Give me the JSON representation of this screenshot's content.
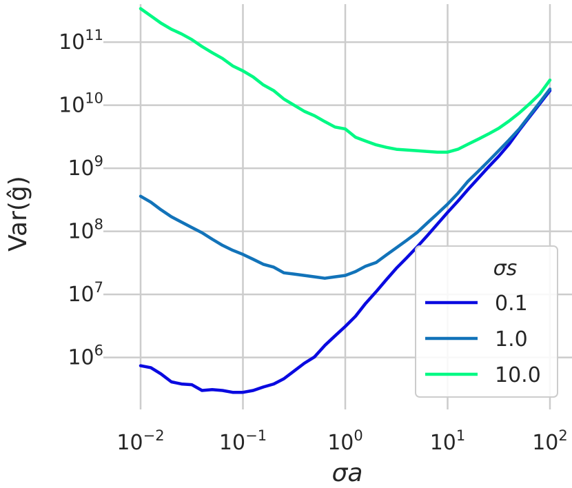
{
  "chart_data": {
    "type": "line",
    "x_scale": "log",
    "y_scale": "log",
    "xlim": [
      0.01,
      100
    ],
    "ylim": [
      150000,
      400000000000
    ],
    "xlabel": "σa",
    "ylabel": "Var(ĝ)",
    "grid": true,
    "x_ticks": [
      {
        "value": 0.01,
        "base": "10",
        "exp": "−2"
      },
      {
        "value": 0.1,
        "base": "10",
        "exp": "−1"
      },
      {
        "value": 1,
        "base": "10",
        "exp": "0"
      },
      {
        "value": 10,
        "base": "10",
        "exp": "1"
      },
      {
        "value": 100,
        "base": "10",
        "exp": "2"
      }
    ],
    "y_ticks": [
      {
        "value": 1000000,
        "base": "10",
        "exp": "6"
      },
      {
        "value": 10000000,
        "base": "10",
        "exp": "7"
      },
      {
        "value": 100000000,
        "base": "10",
        "exp": "8"
      },
      {
        "value": 1000000000,
        "base": "10",
        "exp": "9"
      },
      {
        "value": 10000000000,
        "base": "10",
        "exp": "10"
      },
      {
        "value": 100000000000,
        "base": "10",
        "exp": "11"
      }
    ],
    "legend": {
      "title": "σs",
      "placement": "lower-right"
    },
    "series": [
      {
        "name": "0.1",
        "color": "#0a0ae0",
        "x": [
          0.01,
          0.0126,
          0.0158,
          0.02,
          0.0251,
          0.0316,
          0.0398,
          0.0501,
          0.0631,
          0.0794,
          0.1,
          0.126,
          0.158,
          0.2,
          0.251,
          0.316,
          0.398,
          0.501,
          0.631,
          0.794,
          1.0,
          1.26,
          1.58,
          2.0,
          2.51,
          3.16,
          3.98,
          5.01,
          6.31,
          7.94,
          10.0,
          12.6,
          15.8,
          20.0,
          25.1,
          31.6,
          39.8,
          50.1,
          63.1,
          79.4,
          100
        ],
        "y": [
          740000,
          690000,
          550000,
          410000,
          380000,
          370000,
          300000,
          310000,
          300000,
          280000,
          280000,
          300000,
          340000,
          380000,
          460000,
          610000,
          810000,
          1020000,
          1550000,
          2200000,
          3100000,
          4500000,
          7200000,
          11000000,
          17000000,
          26000000,
          38000000,
          56000000,
          85000000,
          130000000,
          200000000,
          300000000,
          460000000,
          700000000,
          1050000000,
          1550000000,
          2400000000,
          4000000000,
          6500000000,
          10500000000,
          17000000000
        ]
      },
      {
        "name": "1.0",
        "color": "#1273b9",
        "x": [
          0.01,
          0.0126,
          0.0158,
          0.02,
          0.0251,
          0.0316,
          0.0398,
          0.0501,
          0.0631,
          0.0794,
          0.1,
          0.126,
          0.158,
          0.2,
          0.251,
          0.316,
          0.398,
          0.501,
          0.631,
          0.794,
          1.0,
          1.26,
          1.58,
          2.0,
          2.51,
          3.16,
          3.98,
          5.01,
          6.31,
          7.94,
          10.0,
          12.6,
          15.8,
          20.0,
          25.1,
          31.6,
          39.8,
          50.1,
          63.1,
          79.4,
          100
        ],
        "y": [
          360000000,
          290000000,
          220000000,
          170000000,
          140000000,
          115000000,
          95000000,
          75000000,
          60000000,
          50000000,
          43000000,
          36000000,
          30000000,
          27000000,
          22000000,
          21000000,
          20000000,
          19000000,
          18000000,
          19000000,
          20000000,
          23000000,
          28000000,
          32000000,
          42000000,
          55000000,
          72000000,
          95000000,
          135000000,
          190000000,
          270000000,
          400000000,
          620000000,
          900000000,
          1300000000,
          1900000000,
          2800000000,
          4200000000,
          6800000000,
          11000000000,
          18000000000
        ]
      },
      {
        "name": "10.0",
        "color": "#00f984",
        "x": [
          0.01,
          0.0126,
          0.0158,
          0.02,
          0.0251,
          0.0316,
          0.0398,
          0.0501,
          0.0631,
          0.0794,
          0.1,
          0.126,
          0.158,
          0.2,
          0.251,
          0.316,
          0.398,
          0.501,
          0.631,
          0.794,
          1.0,
          1.26,
          1.58,
          2.0,
          2.51,
          3.16,
          3.98,
          5.01,
          6.31,
          7.94,
          10.0,
          12.6,
          15.8,
          20.0,
          25.1,
          31.6,
          39.8,
          50.1,
          63.1,
          79.4,
          100
        ],
        "y": [
          340000000000,
          260000000000,
          200000000000,
          160000000000,
          135000000000,
          110000000000,
          85000000000,
          68000000000,
          55000000000,
          42000000000,
          35000000000,
          28000000000,
          21000000000,
          17000000000,
          12500000000,
          10000000000,
          8000000000,
          6800000000,
          5500000000,
          4500000000,
          4200000000,
          3100000000,
          2700000000,
          2350000000,
          2150000000,
          2000000000,
          1950000000,
          1900000000,
          1850000000,
          1800000000,
          1800000000,
          2000000000,
          2400000000,
          2900000000,
          3500000000,
          4300000000,
          5600000000,
          7500000000,
          10500000000,
          15000000000,
          25000000000
        ]
      }
    ]
  }
}
